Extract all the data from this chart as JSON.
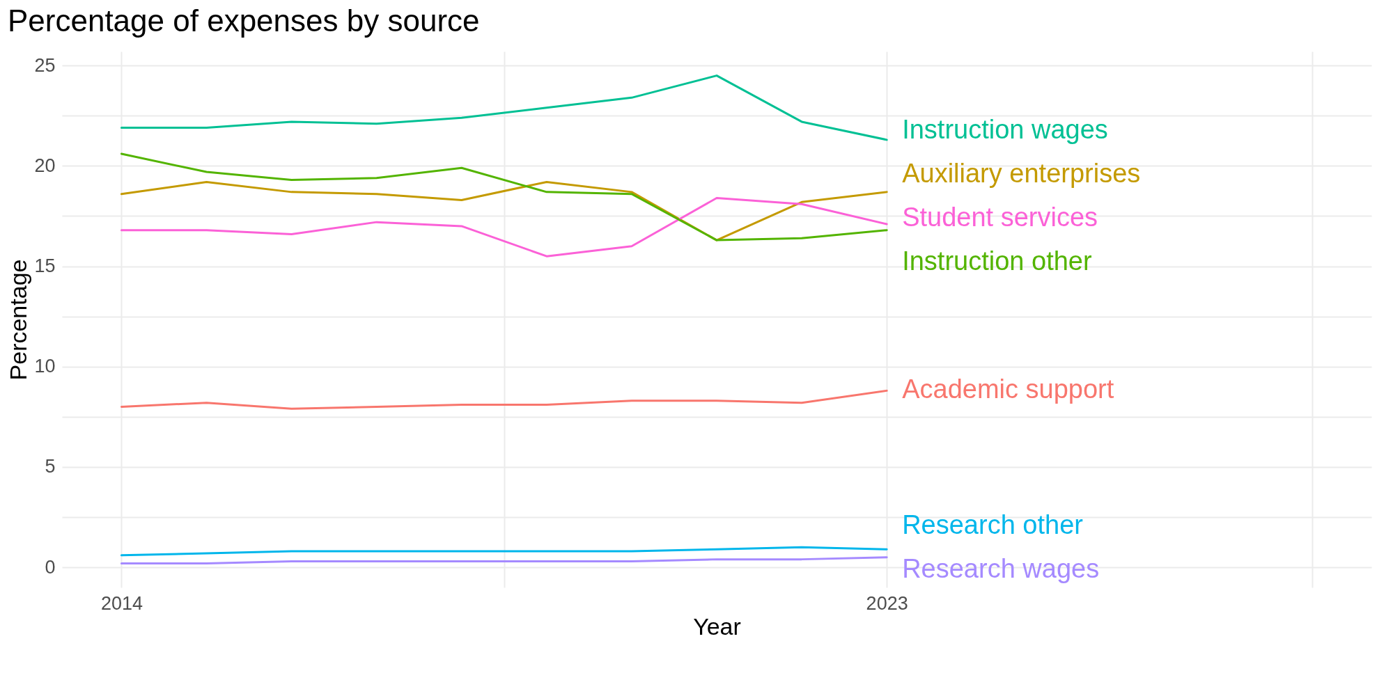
{
  "chart_data": {
    "type": "line",
    "title": "Percentage of expenses by source",
    "xlabel": "Year",
    "ylabel": "Percentage",
    "x": [
      2014,
      2015,
      2016,
      2017,
      2018,
      2019,
      2020,
      2021,
      2022,
      2023
    ],
    "xlim": [
      2013.3,
      2028.7
    ],
    "xticks": [
      2014,
      {
        "value": 2018.5,
        "label": null
      },
      2023,
      {
        "value": 2028,
        "label": null
      }
    ],
    "ylim": [
      -1,
      25.7
    ],
    "yticks": [
      0,
      {
        "value": 2.5,
        "label": null
      },
      5,
      {
        "value": 7.5,
        "label": null
      },
      10,
      {
        "value": 12.5,
        "label": null
      },
      15,
      {
        "value": 17.5,
        "label": null
      },
      20,
      {
        "value": 22.5,
        "label": null
      },
      25
    ],
    "grid": true,
    "line_style": "solid",
    "marker": "none",
    "series": [
      {
        "name": "Instruction wages",
        "color": "#00c094",
        "values": [
          21.9,
          21.9,
          22.2,
          22.1,
          22.4,
          22.9,
          23.4,
          24.5,
          22.2,
          21.3
        ]
      },
      {
        "name": "Auxiliary enterprises",
        "color": "#c49a00",
        "values": [
          18.6,
          19.2,
          18.7,
          18.6,
          18.3,
          19.2,
          18.7,
          16.3,
          18.2,
          18.7
        ]
      },
      {
        "name": "Student services",
        "color": "#fb61d7",
        "values": [
          16.8,
          16.8,
          16.6,
          17.2,
          17.0,
          15.5,
          16.0,
          18.4,
          18.1,
          17.1
        ]
      },
      {
        "name": "Instruction other",
        "color": "#53b400",
        "values": [
          20.6,
          19.7,
          19.3,
          19.4,
          19.9,
          18.7,
          18.6,
          16.3,
          16.4,
          16.8
        ]
      },
      {
        "name": "Academic support",
        "color": "#f8766d",
        "values": [
          8.0,
          8.2,
          7.9,
          8.0,
          8.1,
          8.1,
          8.3,
          8.3,
          8.2,
          8.8
        ]
      },
      {
        "name": "Research other",
        "color": "#00b6eb",
        "values": [
          0.6,
          0.7,
          0.8,
          0.8,
          0.8,
          0.8,
          0.8,
          0.9,
          1.0,
          0.9
        ]
      },
      {
        "name": "Research wages",
        "color": "#a58aff",
        "values": [
          0.2,
          0.2,
          0.3,
          0.3,
          0.3,
          0.3,
          0.3,
          0.4,
          0.4,
          0.5
        ]
      }
    ]
  }
}
